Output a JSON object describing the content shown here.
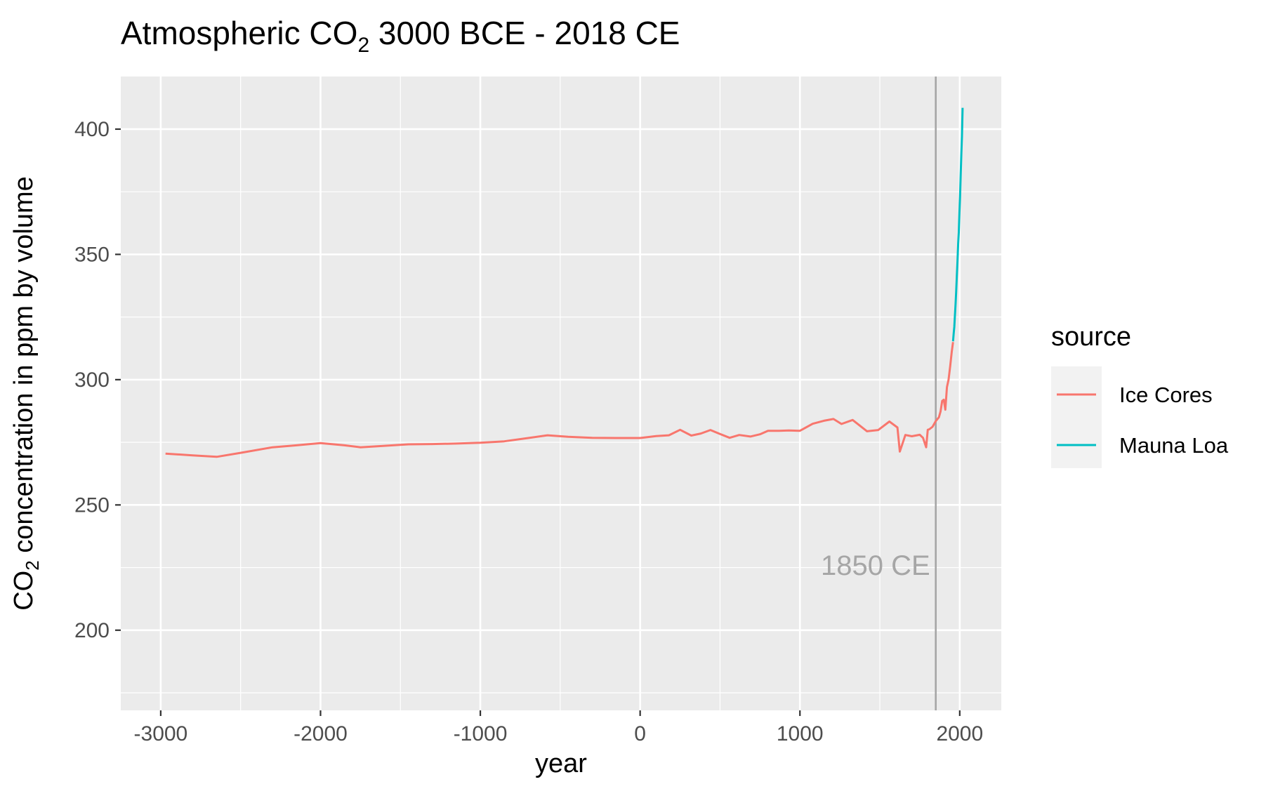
{
  "chart_data": {
    "type": "line",
    "title": "Atmospheric CO",
    "title_sub": "2",
    "title_rest": " 3000 BCE - 2018 CE",
    "xlabel": "year",
    "ylabel": "CO",
    "ylabel_sub": "2",
    "ylabel_rest": " concentration in ppm by volume",
    "xlim": [
      -3250,
      2260
    ],
    "ylim": [
      168,
      421
    ],
    "x_ticks": [
      -3000,
      -2000,
      -1000,
      0,
      1000,
      2000
    ],
    "x_tick_labels": [
      "-3000",
      "-2000",
      "-1000",
      "0",
      "1000",
      "2000"
    ],
    "y_ticks": [
      200,
      250,
      300,
      350,
      400
    ],
    "y_tick_labels": [
      "200",
      "250",
      "300",
      "350",
      "400"
    ],
    "grid": true,
    "legend_position": "right",
    "legend_title": "source",
    "vline": {
      "x": 1850,
      "label": "1850 CE",
      "color": "#a6a6a6"
    },
    "panel_color": "#ebebeb",
    "grid_color": "#ffffff",
    "series": [
      {
        "name": "Ice Cores",
        "color": "#f8766d",
        "x": [
          -2970,
          -2800,
          -2650,
          -2500,
          -2300,
          -2150,
          -2000,
          -1850,
          -1750,
          -1600,
          -1450,
          -1300,
          -1150,
          -1000,
          -850,
          -700,
          -580,
          -450,
          -300,
          -150,
          0,
          100,
          180,
          250,
          320,
          380,
          440,
          500,
          560,
          620,
          690,
          750,
          800,
          870,
          930,
          1000,
          1080,
          1150,
          1210,
          1260,
          1330,
          1420,
          1490,
          1560,
          1610,
          1625,
          1660,
          1700,
          1750,
          1770,
          1790,
          1800,
          1810,
          1830,
          1850,
          1870,
          1880,
          1890,
          1900,
          1910,
          1920,
          1930,
          1940,
          1950,
          1958
        ],
        "values": [
          270.5,
          269.8,
          269.2,
          270.8,
          273.0,
          273.8,
          274.7,
          273.8,
          273.0,
          273.6,
          274.2,
          274.3,
          274.5,
          274.8,
          275.4,
          276.7,
          277.8,
          277.2,
          276.8,
          276.7,
          276.7,
          277.5,
          277.8,
          280.0,
          277.7,
          278.5,
          279.9,
          278.3,
          276.8,
          277.9,
          277.3,
          278.2,
          279.6,
          279.6,
          279.7,
          279.6,
          282.4,
          283.6,
          284.3,
          282.3,
          283.9,
          279.4,
          279.9,
          283.3,
          280.9,
          271.3,
          277.9,
          277.4,
          278.0,
          276.8,
          273.0,
          280.0,
          280.2,
          281.2,
          283.5,
          285.0,
          287.3,
          291.5,
          292.0,
          288.0,
          297.0,
          300.0,
          305.3,
          311.0,
          315.0
        ]
      },
      {
        "name": "Mauna Loa",
        "color": "#00bfc4",
        "x": [
          1958,
          1962,
          1966,
          1970,
          1974,
          1978,
          1982,
          1986,
          1990,
          1994,
          1998,
          2002,
          2006,
          2010,
          2014,
          2018
        ],
        "values": [
          315.3,
          318.4,
          321.1,
          325.7,
          330.2,
          335.4,
          341.4,
          347.1,
          354.4,
          358.8,
          366.6,
          373.1,
          381.9,
          389.9,
          397.1,
          408.5
        ]
      }
    ]
  }
}
